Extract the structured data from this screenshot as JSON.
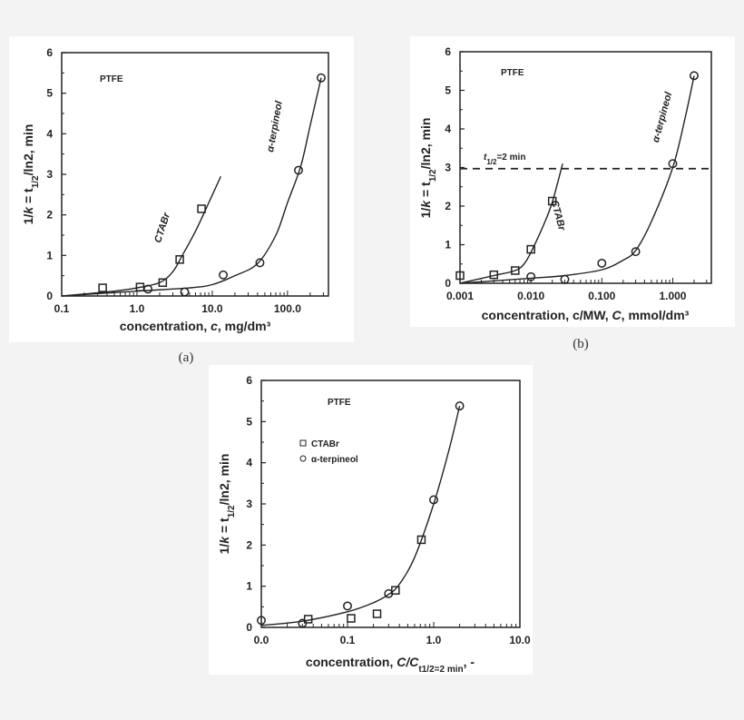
{
  "colors": {
    "background": "#f3f3f3",
    "panel": "#ffffff",
    "ink": "#222222"
  },
  "chart_data": [
    {
      "id": "a",
      "type": "scatter",
      "caption": "(a)",
      "annotation": "PTFE",
      "x_scale": "log",
      "xlim": [
        0.1,
        350
      ],
      "ylim": [
        0,
        6
      ],
      "x_ticks": [
        0.1,
        1,
        10,
        100
      ],
      "x_tick_labels": [
        "0.1",
        "1.0",
        "10.0",
        "100.0"
      ],
      "y_ticks": [
        0,
        1,
        2,
        3,
        4,
        5,
        6
      ],
      "y_tick_labels": [
        "0",
        "1",
        "2",
        "3",
        "4",
        "5",
        "6"
      ],
      "ylabel_parts": [
        "1/",
        "k",
        " = t",
        "1/2",
        "/ln2, min"
      ],
      "xlabel_parts": [
        "concentration, ",
        "c",
        ",  mg/dm³"
      ],
      "grid": false,
      "series": [
        {
          "name": "CTABr",
          "marker": "square",
          "points": [
            [
              0.35,
              0.2
            ],
            [
              1.1,
              0.22
            ],
            [
              2.2,
              0.33
            ],
            [
              3.7,
              0.9
            ],
            [
              7.2,
              2.15
            ]
          ],
          "fit_curve": [
            [
              0.1,
              0
            ],
            [
              0.5,
              0.12
            ],
            [
              1,
              0.2
            ],
            [
              2,
              0.33
            ],
            [
              3,
              0.6
            ],
            [
              4,
              1.0
            ],
            [
              6,
              1.6
            ],
            [
              9,
              2.3
            ],
            [
              13,
              2.95
            ]
          ]
        },
        {
          "name": "α-terpineol",
          "marker": "circle",
          "points": [
            [
              1.4,
              0.17
            ],
            [
              4.3,
              0.1
            ],
            [
              14,
              0.52
            ],
            [
              43,
              0.82
            ],
            [
              140,
              3.1
            ],
            [
              280,
              5.38
            ]
          ],
          "fit_curve": [
            [
              0.1,
              0
            ],
            [
              1,
              0.12
            ],
            [
              5,
              0.2
            ],
            [
              10,
              0.28
            ],
            [
              20,
              0.5
            ],
            [
              40,
              0.8
            ],
            [
              70,
              1.5
            ],
            [
              100,
              2.3
            ],
            [
              150,
              3.2
            ],
            [
              200,
              4.2
            ],
            [
              280,
              5.38
            ]
          ]
        }
      ]
    },
    {
      "id": "b",
      "type": "scatter",
      "caption": "(b)",
      "annotation": "PTFE",
      "x_scale": "log",
      "xlim": [
        0.001,
        3.5
      ],
      "ylim": [
        0,
        6
      ],
      "x_ticks": [
        0.001,
        0.01,
        0.1,
        1
      ],
      "x_tick_labels": [
        "0.001",
        "0.010",
        "0.100",
        "1.000"
      ],
      "y_ticks": [
        0,
        1,
        2,
        3,
        4,
        5,
        6
      ],
      "y_tick_labels": [
        "0",
        "1",
        "2",
        "3",
        "4",
        "5",
        "6"
      ],
      "ylabel_parts": [
        "1/",
        "k",
        " = t",
        "1/2",
        "/ln2, min"
      ],
      "xlabel_parts": [
        "concentration, c/MW, ",
        "C",
        ", mmol/dm³"
      ],
      "grid": false,
      "reference_line": {
        "y": 2.97,
        "style": "dashed",
        "label_parts": [
          "t",
          "1/2",
          "=2 min"
        ]
      },
      "series": [
        {
          "name": "CTABr",
          "marker": "square",
          "points": [
            [
              0.001,
              0.2
            ],
            [
              0.003,
              0.22
            ],
            [
              0.006,
              0.33
            ],
            [
              0.01,
              0.88
            ],
            [
              0.02,
              2.13
            ]
          ],
          "fit_curve": [
            [
              0.001,
              0
            ],
            [
              0.003,
              0.2
            ],
            [
              0.006,
              0.33
            ],
            [
              0.008,
              0.5
            ],
            [
              0.01,
              0.8
            ],
            [
              0.015,
              1.5
            ],
            [
              0.02,
              2.1
            ],
            [
              0.028,
              3.1
            ]
          ]
        },
        {
          "name": "α-terpineol",
          "marker": "circle",
          "points": [
            [
              0.01,
              0.17
            ],
            [
              0.03,
              0.1
            ],
            [
              0.1,
              0.52
            ],
            [
              0.3,
              0.82
            ],
            [
              1.0,
              3.1
            ],
            [
              2.0,
              5.38
            ]
          ],
          "fit_curve": [
            [
              0.001,
              0
            ],
            [
              0.01,
              0.13
            ],
            [
              0.03,
              0.2
            ],
            [
              0.1,
              0.35
            ],
            [
              0.2,
              0.6
            ],
            [
              0.3,
              0.85
            ],
            [
              0.5,
              1.6
            ],
            [
              1,
              3.0
            ],
            [
              1.5,
              4.3
            ],
            [
              2,
              5.38
            ]
          ]
        }
      ]
    },
    {
      "id": "c",
      "type": "scatter",
      "annotation": "PTFE",
      "x_scale": "log",
      "xlim": [
        0.01,
        10
      ],
      "ylim": [
        0,
        6
      ],
      "x_ticks": [
        0.01,
        0.1,
        1,
        10
      ],
      "x_tick_labels": [
        "0.0",
        "0.1",
        "1.0",
        "10.0"
      ],
      "y_ticks": [
        0,
        1,
        2,
        3,
        4,
        5,
        6
      ],
      "y_tick_labels": [
        "0",
        "1",
        "2",
        "3",
        "4",
        "5",
        "6"
      ],
      "ylabel_parts": [
        "1/",
        "k",
        " = t",
        "1/2",
        "/ln2, min"
      ],
      "xlabel_parts": [
        "concentration, ",
        "C/C",
        "t1/2=2 min",
        ", -"
      ],
      "grid": false,
      "legend": "upper-left",
      "series": [
        {
          "name": "CTABr",
          "marker": "square",
          "points": [
            [
              0.035,
              0.2
            ],
            [
              0.11,
              0.22
            ],
            [
              0.22,
              0.33
            ],
            [
              0.36,
              0.9
            ],
            [
              0.72,
              2.13
            ]
          ]
        },
        {
          "name": "α-terpineol",
          "marker": "circle",
          "points": [
            [
              0.01,
              0.17
            ],
            [
              0.03,
              0.1
            ],
            [
              0.1,
              0.52
            ],
            [
              0.3,
              0.82
            ],
            [
              1.0,
              3.1
            ],
            [
              2.0,
              5.38
            ]
          ]
        }
      ],
      "fit_curve": [
        [
          0.01,
          0.05
        ],
        [
          0.03,
          0.15
        ],
        [
          0.1,
          0.38
        ],
        [
          0.2,
          0.6
        ],
        [
          0.3,
          0.8
        ],
        [
          0.4,
          1.05
        ],
        [
          0.6,
          1.7
        ],
        [
          1,
          3.0
        ],
        [
          1.5,
          4.3
        ],
        [
          2,
          5.38
        ]
      ]
    }
  ]
}
